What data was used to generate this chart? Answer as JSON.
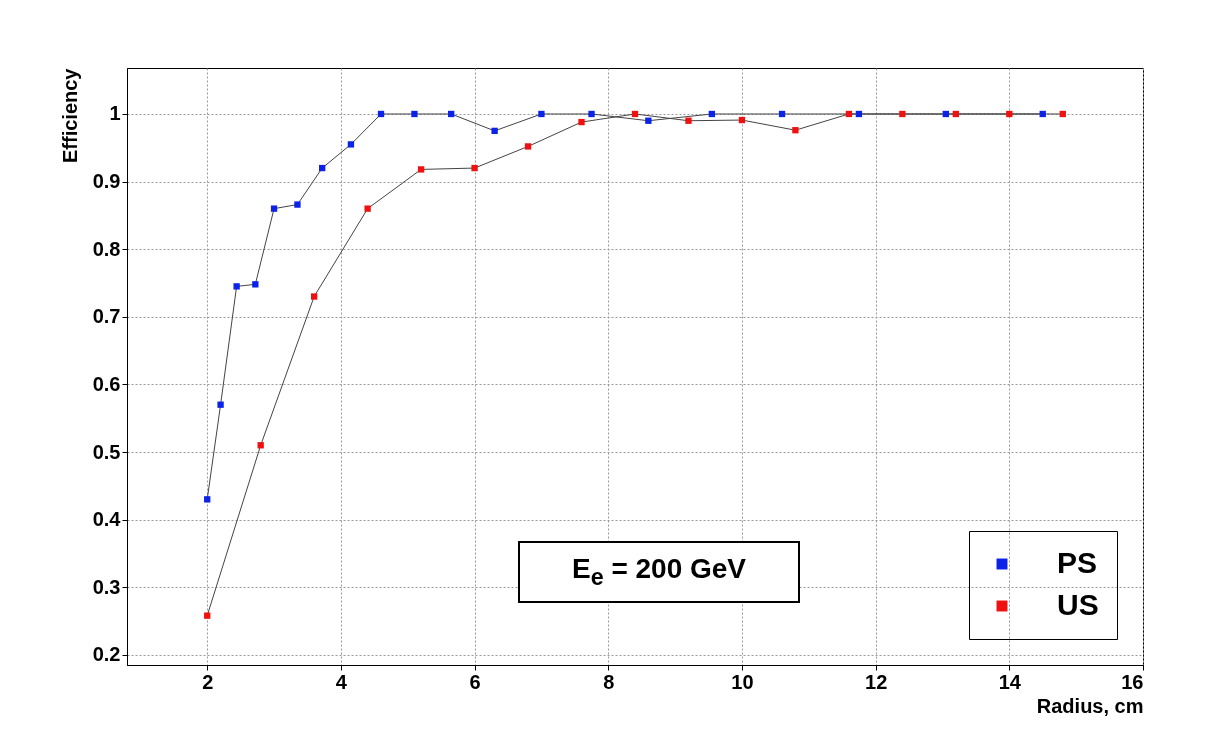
{
  "chart_data": {
    "type": "line",
    "xlabel": "Radius, cm",
    "ylabel": "Efficiency",
    "xlim": [
      0.8,
      16
    ],
    "ylim": [
      0.185,
      1.068
    ],
    "xticks": [
      2,
      4,
      6,
      8,
      10,
      12,
      14,
      16
    ],
    "yticks": [
      0.2,
      0.3,
      0.4,
      0.5,
      0.6,
      0.7,
      0.8,
      0.9,
      1
    ],
    "grid": true,
    "marker": "square",
    "line_style": "solid",
    "legend": "bottom right",
    "annotations": [
      "E$_{e}$ = 200 GeV"
    ],
    "series": [
      {
        "name": "PS",
        "color": "#0b22e8",
        "x": [
          2,
          2.2,
          2.44,
          2.72,
          3.0,
          3.35,
          3.72,
          4.15,
          4.6,
          5.1,
          5.65,
          6.3,
          7.0,
          7.75,
          8.6,
          9.55,
          10.6,
          11.75,
          13.05,
          14.5
        ],
        "values": [
          0.43,
          0.57,
          0.745,
          0.748,
          0.86,
          0.866,
          0.92,
          0.955,
          1.0,
          1.0,
          1.0,
          0.975,
          1.0,
          1.0,
          0.99,
          1.0,
          1.0,
          1.0,
          1.0,
          1.0
        ]
      },
      {
        "name": "US",
        "color": "#f01010",
        "x": [
          2,
          2.8,
          3.6,
          4.4,
          5.2,
          6.0,
          6.8,
          7.6,
          8.4,
          9.2,
          10.0,
          10.8,
          11.6,
          12.4,
          13.2,
          14.0,
          14.8
        ],
        "values": [
          0.258,
          0.51,
          0.73,
          0.86,
          0.918,
          0.92,
          0.952,
          0.988,
          1.0,
          0.99,
          0.991,
          0.976,
          1.0,
          1.0,
          1.0,
          1.0,
          1.0
        ]
      }
    ]
  }
}
